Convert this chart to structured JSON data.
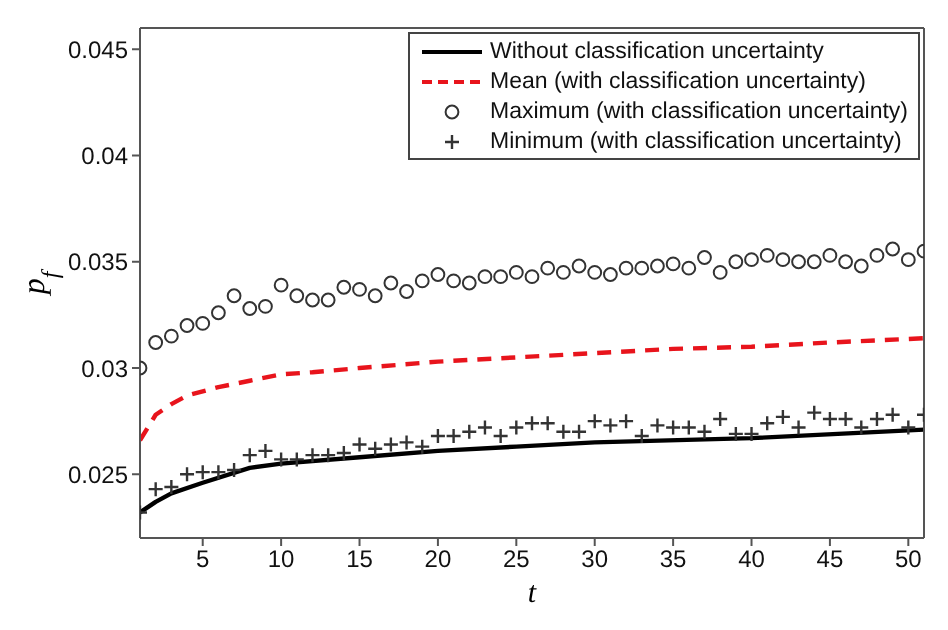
{
  "chart_data": {
    "type": "line",
    "xlabel": "t",
    "ylabel": "p$_{f}$",
    "xlim": [
      1,
      51
    ],
    "ylim": [
      0.022,
      0.046
    ],
    "xticks": [
      5,
      10,
      15,
      20,
      25,
      30,
      35,
      40,
      45,
      50
    ],
    "yticks": [
      0.025,
      0.03,
      0.035,
      0.04,
      0.045
    ],
    "grid": false,
    "legend": "top right",
    "series": [
      {
        "name": "Without classification uncertainty",
        "color": "#000000",
        "line_style": "solid",
        "marker": "none",
        "x": [
          1,
          2,
          3,
          5,
          8,
          10,
          15,
          20,
          25,
          30,
          40,
          51
        ],
        "values": [
          0.0232,
          0.0237,
          0.0241,
          0.0246,
          0.0253,
          0.0255,
          0.0258,
          0.0261,
          0.0263,
          0.0265,
          0.0267,
          0.0271
        ]
      },
      {
        "name": "Mean (with classification uncertainty)",
        "color": "#e8141c",
        "line_style": "dashed",
        "marker": "none",
        "x": [
          1,
          2,
          3,
          4,
          5,
          6,
          8,
          10,
          12,
          15,
          20,
          25,
          30,
          35,
          40,
          45,
          51
        ],
        "values": [
          0.0266,
          0.0278,
          0.0283,
          0.0287,
          0.0289,
          0.0291,
          0.0294,
          0.0297,
          0.0298,
          0.03,
          0.0303,
          0.0305,
          0.0307,
          0.0309,
          0.031,
          0.0312,
          0.0314
        ]
      },
      {
        "name": "Maximum (with classification uncertainty)",
        "type": "scatter",
        "color": "#333333",
        "marker": "circle",
        "x": [
          1,
          2,
          3,
          4,
          5,
          6,
          7,
          8,
          9,
          10,
          11,
          12,
          13,
          14,
          15,
          16,
          17,
          18,
          19,
          20,
          21,
          22,
          23,
          24,
          25,
          26,
          27,
          28,
          29,
          30,
          31,
          32,
          33,
          34,
          35,
          36,
          37,
          38,
          39,
          40,
          41,
          42,
          43,
          44,
          45,
          46,
          47,
          48,
          49,
          50,
          51
        ],
        "values": [
          0.03,
          0.0312,
          0.0315,
          0.032,
          0.0321,
          0.0326,
          0.0334,
          0.0328,
          0.0329,
          0.0339,
          0.0334,
          0.0332,
          0.0332,
          0.0338,
          0.0337,
          0.0334,
          0.034,
          0.0336,
          0.0341,
          0.0344,
          0.0341,
          0.034,
          0.0343,
          0.0343,
          0.0345,
          0.0343,
          0.0347,
          0.0345,
          0.0348,
          0.0345,
          0.0344,
          0.0347,
          0.0347,
          0.0348,
          0.0349,
          0.0347,
          0.0352,
          0.0345,
          0.035,
          0.0351,
          0.0353,
          0.0351,
          0.035,
          0.035,
          0.0353,
          0.035,
          0.0348,
          0.0353,
          0.0356,
          0.0351,
          0.0355
        ]
      },
      {
        "name": "Minimum (with classification uncertainty)",
        "type": "scatter",
        "color": "#333333",
        "marker": "cross",
        "x": [
          1,
          2,
          3,
          4,
          5,
          6,
          7,
          8,
          9,
          10,
          11,
          12,
          13,
          14,
          15,
          16,
          17,
          18,
          19,
          20,
          21,
          22,
          23,
          24,
          25,
          26,
          27,
          28,
          29,
          30,
          31,
          32,
          33,
          34,
          35,
          36,
          37,
          38,
          39,
          40,
          41,
          42,
          43,
          44,
          45,
          46,
          47,
          48,
          49,
          50,
          51
        ],
        "values": [
          0.0232,
          0.0243,
          0.0244,
          0.025,
          0.0251,
          0.0251,
          0.0252,
          0.0259,
          0.0261,
          0.0257,
          0.0257,
          0.0259,
          0.0259,
          0.026,
          0.0264,
          0.0262,
          0.0264,
          0.0265,
          0.0263,
          0.0268,
          0.0268,
          0.027,
          0.0272,
          0.0268,
          0.0272,
          0.0274,
          0.0274,
          0.027,
          0.027,
          0.0275,
          0.0273,
          0.0275,
          0.0268,
          0.0273,
          0.0272,
          0.0272,
          0.027,
          0.0276,
          0.0269,
          0.0269,
          0.0274,
          0.0277,
          0.0272,
          0.0279,
          0.0276,
          0.0276,
          0.0272,
          0.0276,
          0.0278,
          0.0272,
          0.0278
        ]
      }
    ]
  }
}
